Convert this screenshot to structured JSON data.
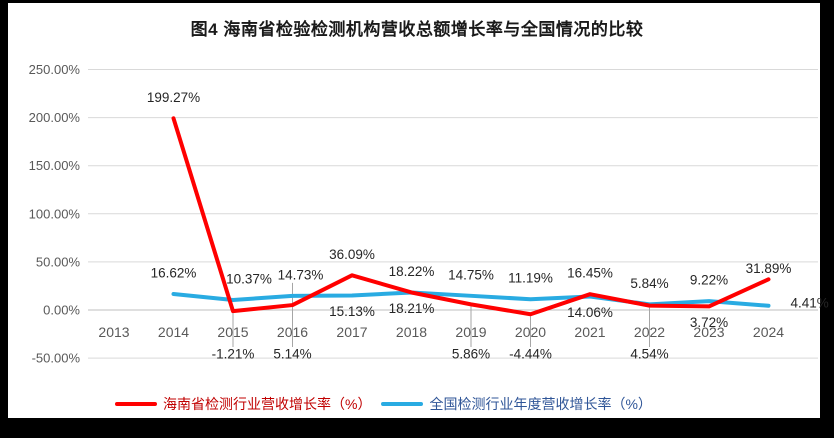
{
  "frame": {
    "background": "#000000",
    "surface": "#ffffff"
  },
  "chart_data": {
    "type": "line",
    "title": "图4 海南省检验检测机构营收总额增长率与全国情况的比较",
    "xlabel": "",
    "ylabel": "",
    "grid": true,
    "legend_position": "bottom",
    "ylim": [
      -50,
      250
    ],
    "y_ticks": [
      {
        "label": "250.00%",
        "value": 250
      },
      {
        "label": "200.00%",
        "value": 200
      },
      {
        "label": "150.00%",
        "value": 150
      },
      {
        "label": "100.00%",
        "value": 100
      },
      {
        "label": "50.00%",
        "value": 50
      },
      {
        "label": "0.00%",
        "value": 0
      },
      {
        "label": "-50.00%",
        "value": -50
      }
    ],
    "categories": [
      "2013",
      "2014",
      "2015",
      "2016",
      "2017",
      "2018",
      "2019",
      "2020",
      "2021",
      "2022",
      "2023",
      "2024"
    ],
    "series": [
      {
        "id": "national",
        "name": "全国检测行业年度营收增长率（%）",
        "color": "#29abe2",
        "values": [
          null,
          16.62,
          10.37,
          14.73,
          15.13,
          18.22,
          14.75,
          11.19,
          14.06,
          5.84,
          9.22,
          4.41
        ],
        "label_pos": [
          null,
          "above",
          "above",
          "above",
          "below",
          "above",
          "above",
          "above",
          "below",
          "above",
          "above",
          "right"
        ],
        "label_dx": {
          "2": 16,
          "3": 8
        },
        "label_dy": {},
        "extra_leader_idx": [
          3
        ]
      },
      {
        "id": "hainan",
        "name": "海南省检测行业营收增长率（%）",
        "color": "#ff0000",
        "values": [
          null,
          199.27,
          -1.21,
          5.14,
          36.09,
          18.21,
          5.86,
          -4.44,
          16.45,
          4.54,
          3.72,
          31.89
        ],
        "label_pos": [
          null,
          "above",
          "axis",
          "axis",
          "above",
          "below",
          "axis",
          "axis",
          "above",
          "axis",
          "below",
          "above"
        ],
        "label_dx": {},
        "label_dy": {
          "11": -11
        },
        "extra_leader_idx": []
      }
    ],
    "colors": {
      "gridline": "#d9d9d9",
      "zero_axis": "#bfbfbf",
      "leader_line": "#a6a6a6",
      "axis_text": "#595959",
      "data_label_text": "#262626"
    }
  },
  "legend": {
    "items": [
      {
        "id": "hainan",
        "label": "海南省检测行业营收增长率（%）",
        "line_color": "#ff0000",
        "text_color": "#c00000"
      },
      {
        "id": "national",
        "label": "全国检测行业年度营收增长率（%）",
        "line_color": "#29abe2",
        "text_color": "#2f5597"
      }
    ]
  }
}
